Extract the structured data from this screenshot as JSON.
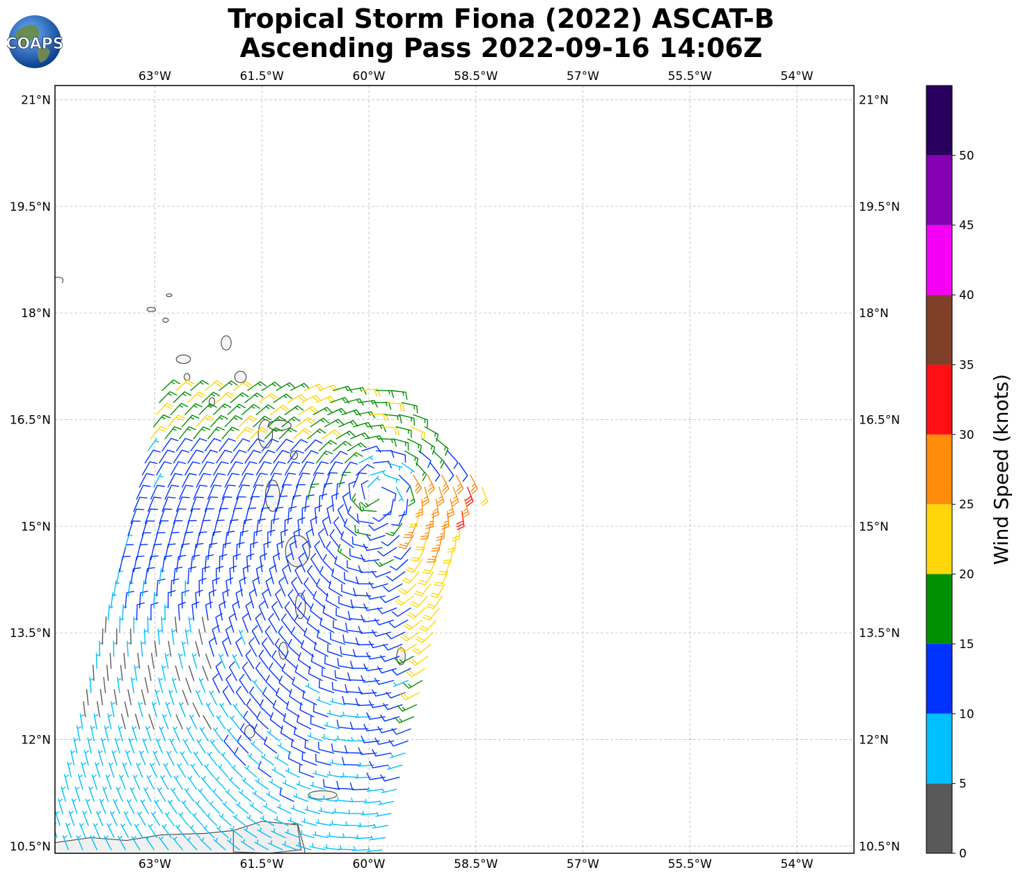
{
  "header": {
    "title_line1": "Tropical Storm Fiona (2022) ASCAT-B",
    "title_line2": "Ascending Pass 2022-09-16 14:06Z",
    "logo_text": "COAPS"
  },
  "map": {
    "lon_range": [
      -64.4,
      -53.2
    ],
    "lat_range": [
      10.4,
      21.2
    ],
    "lon_ticks": [
      {
        "value": -63,
        "label": "63°W"
      },
      {
        "value": -61.5,
        "label": "61.5°W"
      },
      {
        "value": -60,
        "label": "60°W"
      },
      {
        "value": -58.5,
        "label": "58.5°W"
      },
      {
        "value": -57,
        "label": "57°W"
      },
      {
        "value": -55.5,
        "label": "55.5°W"
      },
      {
        "value": -54,
        "label": "54°W"
      }
    ],
    "lat_ticks": [
      {
        "value": 21,
        "label": "21°N"
      },
      {
        "value": 19.5,
        "label": "19.5°N"
      },
      {
        "value": 18,
        "label": "18°N"
      },
      {
        "value": 16.5,
        "label": "16.5°N"
      },
      {
        "value": 15,
        "label": "15°N"
      },
      {
        "value": 13.5,
        "label": "13.5°N"
      },
      {
        "value": 12,
        "label": "12°N"
      },
      {
        "value": 10.5,
        "label": "10.5°N"
      }
    ],
    "gridlines": true,
    "swath": {
      "west_edge": [
        [
          -64.4,
          10.5
        ],
        [
          -62.9,
          16.9
        ]
      ],
      "east_edge": [
        [
          -59.8,
          10.4
        ],
        [
          -58.4,
          15.6
        ]
      ]
    },
    "storm_center": {
      "lon": -59.85,
      "lat": 15.75
    }
  },
  "colorbar": {
    "label": "Wind Speed (knots)",
    "bins": [
      {
        "min": 0,
        "max": 5,
        "color": "#595959"
      },
      {
        "min": 5,
        "max": 10,
        "color": "#00bfff"
      },
      {
        "min": 10,
        "max": 15,
        "color": "#0033ff"
      },
      {
        "min": 15,
        "max": 20,
        "color": "#008f00"
      },
      {
        "min": 20,
        "max": 25,
        "color": "#ffd60a"
      },
      {
        "min": 25,
        "max": 30,
        "color": "#ff8c0a"
      },
      {
        "min": 30,
        "max": 35,
        "color": "#ff0f14"
      },
      {
        "min": 35,
        "max": 40,
        "color": "#7f3f28"
      },
      {
        "min": 40,
        "max": 45,
        "color": "#f500f5"
      },
      {
        "min": 45,
        "max": 50,
        "color": "#8400b0"
      },
      {
        "min": 50,
        "max": 55,
        "color": "#2a005e"
      }
    ],
    "tick_labels": [
      "0",
      "5",
      "10",
      "15",
      "20",
      "25",
      "30",
      "35",
      "40",
      "45",
      "50"
    ]
  }
}
